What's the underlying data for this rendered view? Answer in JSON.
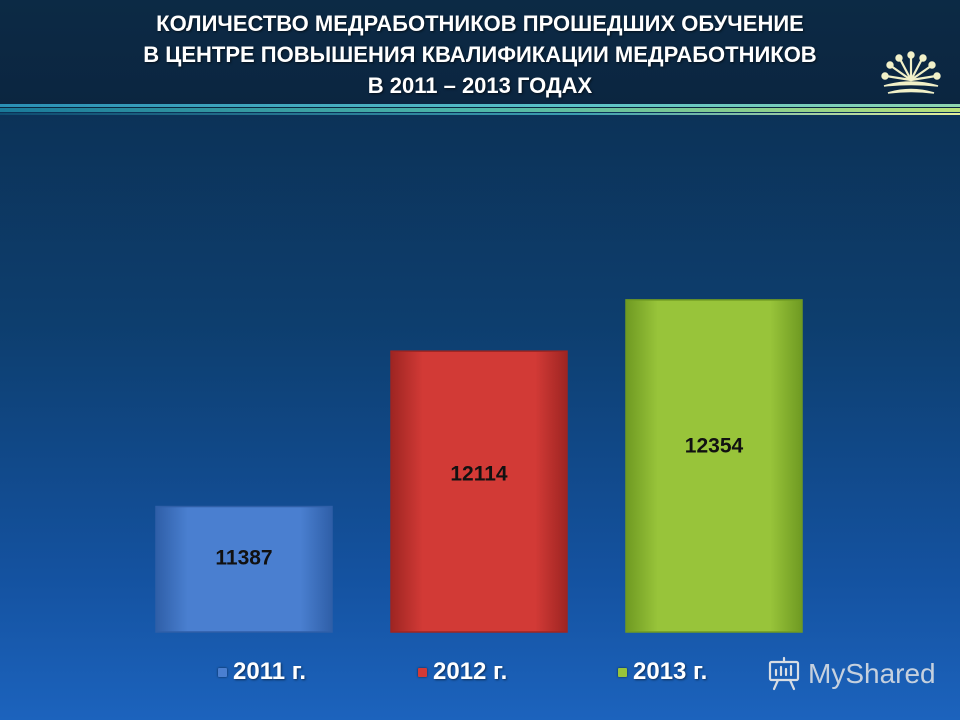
{
  "header": {
    "title_lines": [
      "КОЛИЧЕСТВО МЕДРАБОТНИКОВ ПРОШЕДШИХ ОБУЧЕНИЕ",
      "В ЦЕНТРЕ ПОВЫШЕНИЯ КВАЛИФИКАЦИИ МЕДРАБОТНИКОВ",
      "В 2011 – 2013 ГОДАХ"
    ]
  },
  "chart_data": {
    "type": "bar",
    "title": "КОЛИЧЕСТВО МЕДРАБОТНИКОВ ПРОШЕДШИХ ОБУЧЕНИЕ В ЦЕНТРЕ ПОВЫШЕНИЯ КВАЛИФИКАЦИИ МЕДРАБОТНИКОВ В 2011 – 2013 ГОДАХ",
    "categories": [
      "2011 г.",
      "2012 г.",
      "2013 г."
    ],
    "values": [
      11387,
      12114,
      12354
    ],
    "ylim": [
      10800,
      12550
    ],
    "grid": false,
    "legend": "bottom",
    "colors": [
      "#4a7fd0",
      "#d23a36",
      "#98c43a"
    ],
    "bar_edge_colors": [
      "#2f5fa8",
      "#9e2522",
      "#6f9a22"
    ]
  },
  "legend": {
    "items": [
      {
        "label": "2011 г.",
        "color": "#4a7fd0"
      },
      {
        "label": "2012 г.",
        "color": "#d23a36"
      },
      {
        "label": "2013 г.",
        "color": "#98c43a"
      }
    ]
  },
  "watermark": {
    "text": "MyShared",
    "icon": "presentation-board-icon"
  },
  "logo": {
    "icon": "kurai-flower-icon"
  }
}
